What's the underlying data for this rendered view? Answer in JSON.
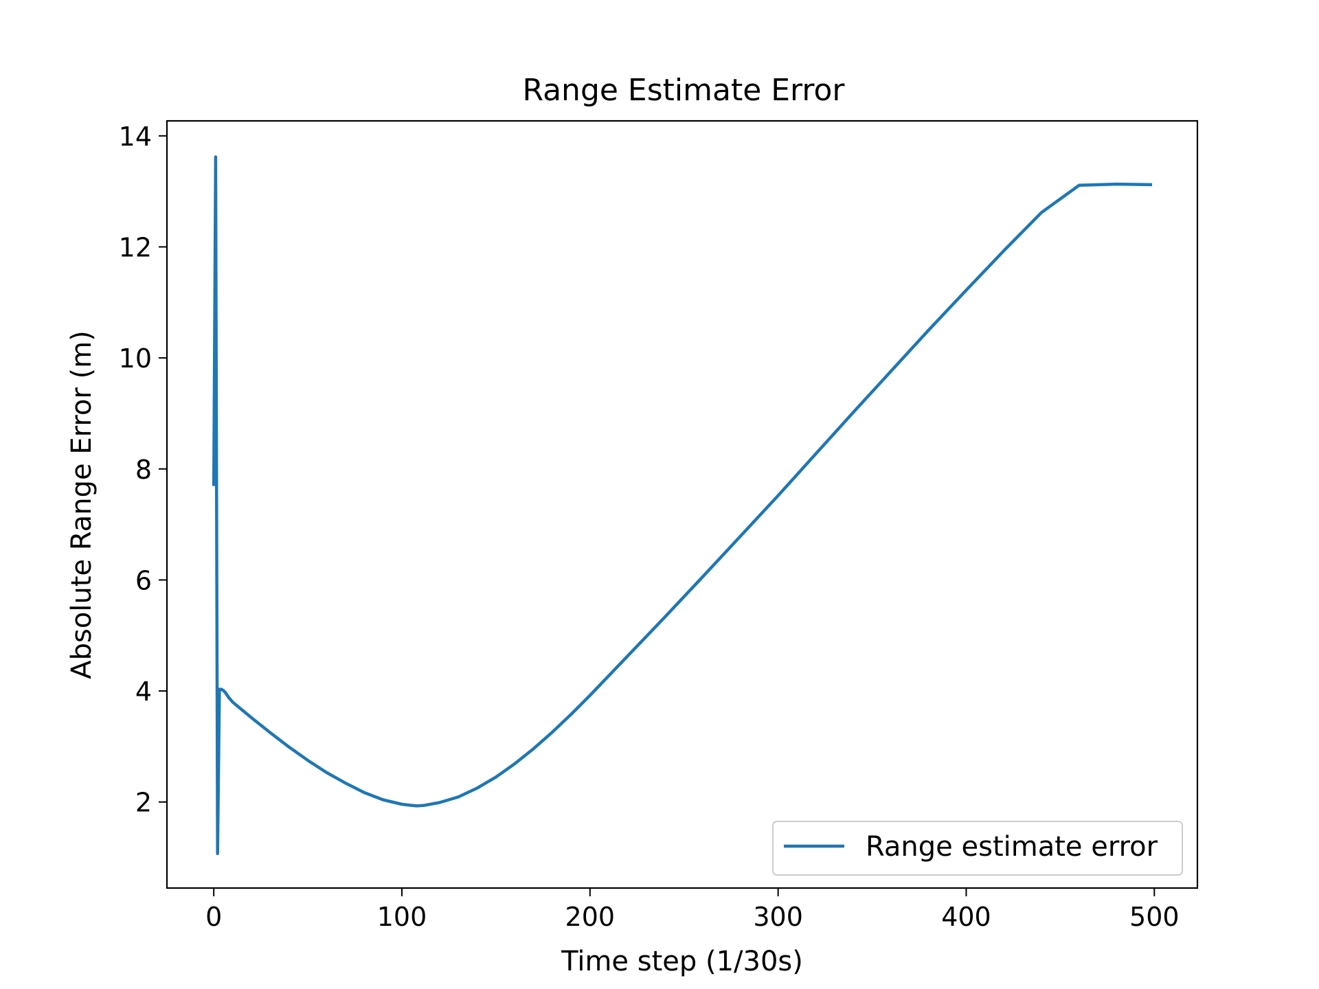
{
  "chart_data": {
    "type": "line",
    "title": "Range Estimate Error",
    "xlabel": "Time step (1/30s)",
    "ylabel": "Absolute Range Error (m)",
    "xlim": [
      -24.9,
      522.9
    ],
    "ylim": [
      0.45,
      14.27
    ],
    "xticks": [
      0,
      100,
      200,
      300,
      400,
      500
    ],
    "yticks": [
      2,
      4,
      6,
      8,
      10,
      12,
      14
    ],
    "grid": false,
    "legend_position": "lower right",
    "series": [
      {
        "name": "Range estimate error",
        "color": "#1f77b4",
        "x": [
          0,
          1,
          2,
          3,
          4,
          5,
          6,
          8,
          10,
          15,
          20,
          30,
          40,
          50,
          60,
          70,
          80,
          90,
          100,
          105,
          108,
          112,
          120,
          130,
          140,
          150,
          160,
          170,
          180,
          190,
          200,
          220,
          240,
          260,
          280,
          300,
          320,
          340,
          360,
          380,
          400,
          420,
          440,
          460,
          480,
          498
        ],
        "y": [
          7.72,
          13.62,
          1.07,
          4.03,
          4.03,
          4.01,
          3.98,
          3.88,
          3.8,
          3.66,
          3.52,
          3.25,
          2.99,
          2.75,
          2.53,
          2.34,
          2.17,
          2.04,
          1.96,
          1.94,
          1.93,
          1.94,
          1.99,
          2.09,
          2.25,
          2.45,
          2.69,
          2.96,
          3.26,
          3.58,
          3.92,
          4.63,
          5.34,
          6.06,
          6.79,
          7.52,
          8.27,
          9.02,
          9.76,
          10.5,
          11.22,
          11.93,
          12.62,
          13.11,
          13.13,
          13.12
        ]
      }
    ]
  }
}
